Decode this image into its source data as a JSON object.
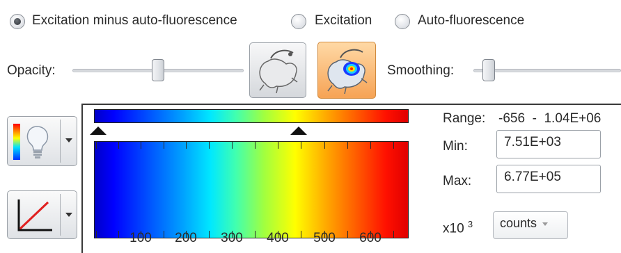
{
  "display_mode": {
    "options": [
      {
        "label": "Excitation minus auto-fluorescence",
        "selected": true
      },
      {
        "label": "Excitation",
        "selected": false
      },
      {
        "label": "Auto-fluorescence",
        "selected": false
      }
    ]
  },
  "opacity": {
    "label": "Opacity:",
    "value_fraction": 0.5
  },
  "smoothing": {
    "label": "Smoothing:",
    "value_fraction": 0.05
  },
  "view_buttons": [
    {
      "icon": "grayscale-mouse-image-icon",
      "active": false
    },
    {
      "icon": "overlay-mouse-image-icon",
      "active": true
    }
  ],
  "color_scale": {
    "range_label": "Range:",
    "range_value": "-656  -  1.04E+06",
    "min_label": "Min:",
    "min_value": "7.51E+03",
    "max_label": "Max:",
    "max_value": "6.77E+05",
    "scale_label": "x10",
    "scale_exponent": "3",
    "units": "counts",
    "x_ticks": [
      "100",
      "200",
      "300",
      "400",
      "500",
      "600"
    ],
    "min_marker_fraction": 0.0,
    "max_marker_fraction": 0.65,
    "colormap": "rainbow"
  },
  "tools": [
    {
      "icon": "colormap-bulb-icon",
      "has_dropdown": true
    },
    {
      "icon": "line-profile-icon",
      "has_dropdown": true
    }
  ]
}
